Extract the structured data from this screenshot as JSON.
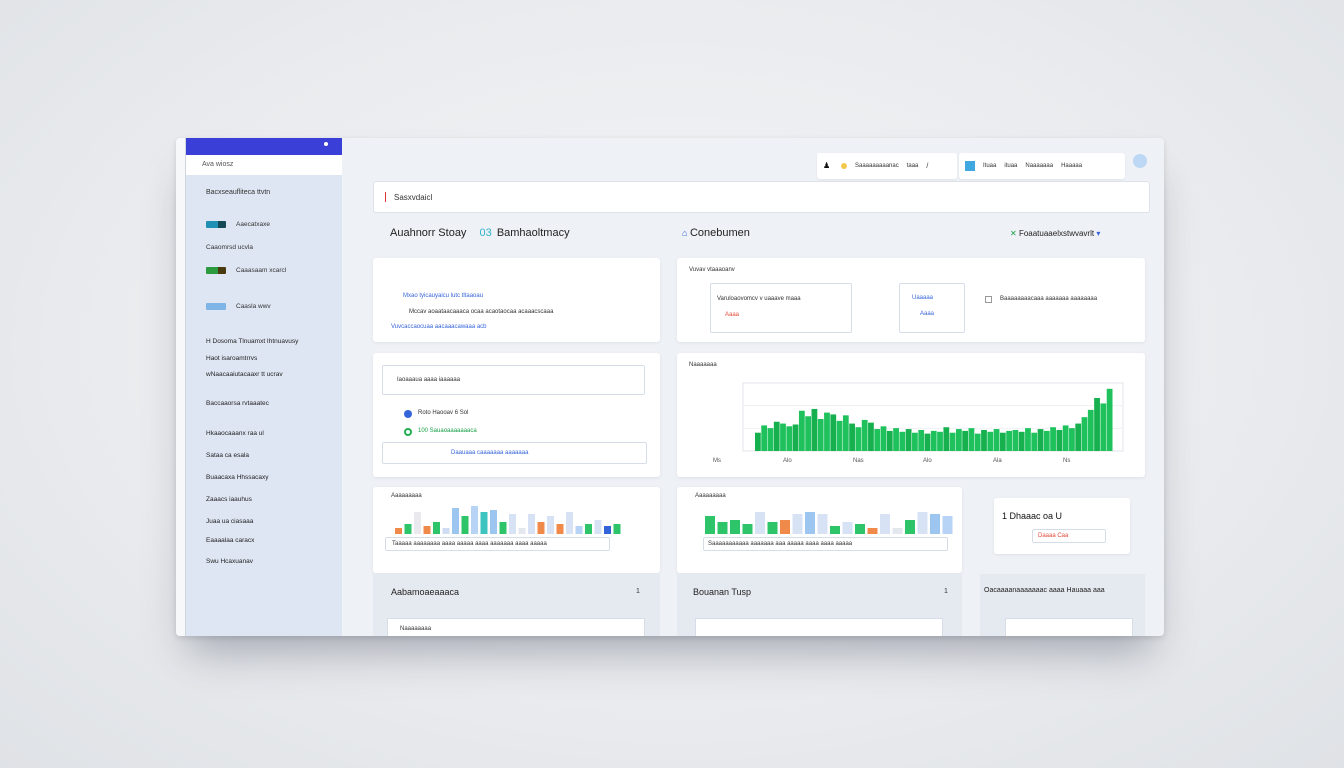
{
  "colors": {
    "accent": "#3a3fd8",
    "green": "#1ec15c",
    "blue": "#3564d8",
    "red": "#e04a3a",
    "light_blue": "#a9c7f2"
  },
  "sidebar": {
    "search_label": "Ava wiosz",
    "heading": "Bacxseaufliteca ttvtn",
    "items": [
      {
        "label": "Aaecatxaxe",
        "icon": "teal-swatch"
      },
      {
        "label": "Caaomrsd ucvla",
        "icon": "none"
      },
      {
        "label": "Caaasaam xcarcl",
        "icon": "green-swatch"
      },
      {
        "label": "Caasla wwv",
        "icon": "blue-swatch"
      }
    ],
    "links": [
      "H Dosoma Tlnuamxt Ihtnuavusy",
      "Haot isaroamtrrvs",
      "wNaacaaiutacaaxr tt ucrav",
      "Baccaaorsa rvtaaatec",
      "Hkaaocaaanx raa ul",
      "Sataa ca esala",
      "Buaacaxa Hhssacaxy",
      "Zaaacs iaauhus",
      "Juaa ua ciasaaa",
      "Eaaaalaa caracx",
      "Swu Hcaxuanav"
    ]
  },
  "topbar": {
    "left_items": [
      "Saaaaaaaaanac",
      "taaa"
    ],
    "right_items": [
      "Ituaa",
      "ituaa",
      "Naaaaaaa",
      "Haaaaa"
    ]
  },
  "search": {
    "value": "Sasxvdaicl"
  },
  "sections": {
    "left_title": "Auahnorr Stoay",
    "left_title_2": "Bamhaoltmacy",
    "left_badge": "03",
    "right_title": "Conebumen",
    "right_link": "Foaatuaaelxstwvavrlt"
  },
  "card1": {
    "line1": "Mxao tyicauyaicu lutc tltaaoau",
    "line2": "Mccav aoaataacaaaca ocaa acaotaocaa acaaacscaaa",
    "line3": "Vuvcaccaocuaa aacaaacawaaa acb"
  },
  "card2": {
    "title": "Vuvav vtaaaoanv",
    "sub": "Varuloaovomcv v uaaave maaa",
    "small1": "Uaaaaa",
    "small2": "Aaaa",
    "right_line": "Baaaaaaaacaaa aaaaaaa aaaaaaaa"
  },
  "card3": {
    "header": "Iaoaaaua aaaa iaaaaaa",
    "row1": "Roto Haooav 6 Sol",
    "row2": "100 Sauaoaaaaaaaca",
    "footer": "Daauaaa caaaaaaa aaaaaaa"
  },
  "card4": {
    "header": "Naaaaaaa"
  },
  "card5": {
    "header": "Aaaaaaaaa",
    "caption": "Taaaaa aaaaaaaa aaaa aaaaa aaaa aaaaaaa aaaa aaaaa"
  },
  "card6": {
    "header": "Aaaaaaaaa",
    "caption": "Saaaaaaaaaaa aaaaaaa aaa aaaaa aaaa aaaa aaaaa"
  },
  "card7": {
    "value": "1 Dhaaac oa U",
    "badge": "Daaaa Caa"
  },
  "bottom": {
    "title1": "Aabamoaeaaaca",
    "title2": "Bouanan Tusp",
    "title3": "Oacaaaanaaaaaaac aaaa Hauaaa aaa",
    "sub1": "Naaaaaaaa",
    "num1": "1",
    "num2": "1"
  },
  "chart_data": {
    "type": "bar",
    "x_tick_labels": [
      "Ms",
      "Alo",
      "Nas",
      "Alo",
      "Ala",
      "Ns"
    ],
    "values": [
      20,
      28,
      25,
      32,
      30,
      27,
      29,
      44,
      38,
      46,
      35,
      42,
      40,
      33,
      39,
      30,
      26,
      34,
      31,
      24,
      27,
      22,
      25,
      21,
      24,
      20,
      23,
      19,
      22,
      21,
      26,
      20,
      24,
      22,
      25,
      19,
      23,
      21,
      24,
      20,
      22,
      23,
      21,
      25,
      20,
      24,
      22,
      26,
      23,
      28,
      25,
      30,
      37,
      45,
      58,
      52,
      68
    ]
  }
}
